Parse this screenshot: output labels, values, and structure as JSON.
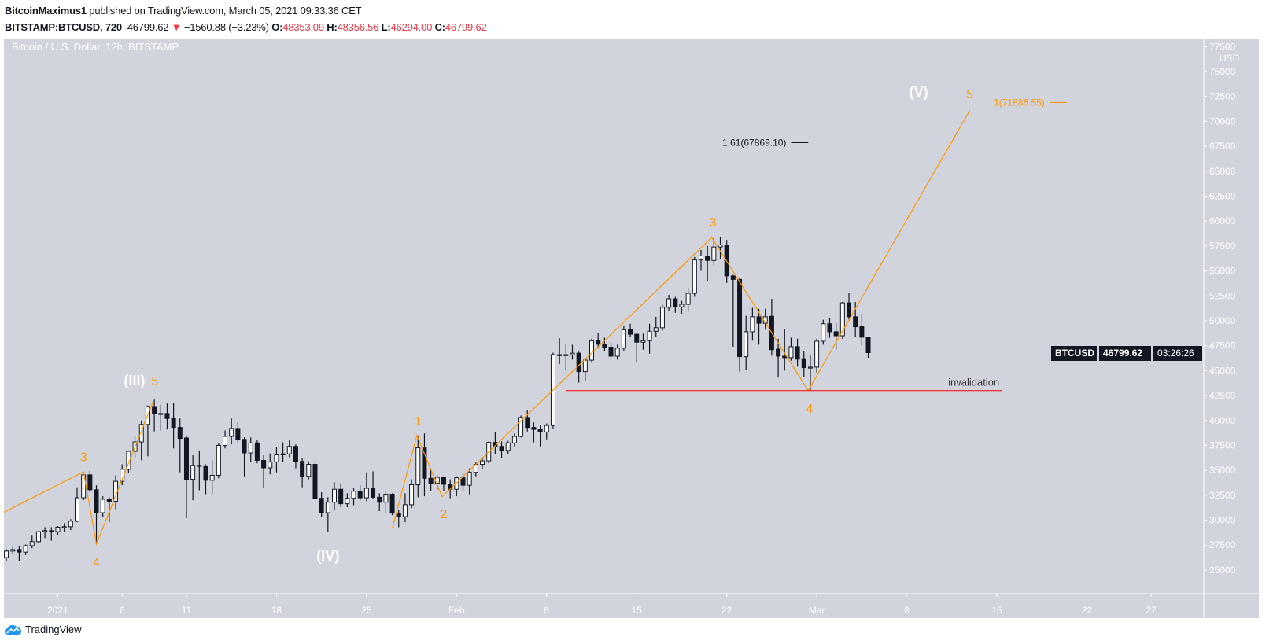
{
  "header": {
    "author": "BitcoinMaximus1",
    "published": "published on TradingView.com, March 05, 2021 09:33:36 CET",
    "symbol": "BITSTAMP:BTCUSD, 720",
    "last": "46799.62",
    "change": "−1560.88 (−3.23%)",
    "open_label": "O:",
    "open": "48353.09",
    "high_label": "H:",
    "high": "48356.56",
    "low_label": "L:",
    "low": "46294.00",
    "close_label": "C:",
    "close": "46799.62",
    "direction_icon": "triangle-down-icon"
  },
  "price_tag": {
    "symbol": "BTCUSD",
    "price": "46799.62",
    "countdown": "03:26:26"
  },
  "footer": {
    "brand": "TradingView",
    "logo_icon": "tradingview-logo-icon"
  },
  "colors": {
    "background": "#d1d4dc",
    "up_candle": "#ffffff",
    "down_candle": "#131722",
    "wave": "#ff9800",
    "degree_label": "#ffffff",
    "invalidation": "#ff0000",
    "fib_161": "#131722",
    "change_red": "#f23645"
  },
  "chart_data": {
    "type": "candlestick",
    "title": "Bitcoin / U.S. Dollar, 12h, BITSTAMP",
    "currency": "USD",
    "interval": "12h",
    "grid": false,
    "xlim": [
      "2020-12-27T19:30",
      "2021-03-31T02:00"
    ],
    "ylim": [
      22630,
      78230
    ],
    "y_ticks": [
      77500,
      75000,
      72500,
      70000,
      67500,
      65000,
      62500,
      60000,
      57500,
      55000,
      52500,
      50000,
      47500,
      45000,
      42500,
      40000,
      37500,
      35000,
      32500,
      30000,
      27500,
      25000
    ],
    "x_ticks": [
      {
        "t": "2021-01-01T00:00",
        "label": "2021"
      },
      {
        "t": "2021-01-06T00:00",
        "label": "6"
      },
      {
        "t": "2021-01-11T00:00",
        "label": "11"
      },
      {
        "t": "2021-01-18T00:00",
        "label": "18"
      },
      {
        "t": "2021-01-25T00:00",
        "label": "25"
      },
      {
        "t": "2021-02-01T00:00",
        "label": "Feb"
      },
      {
        "t": "2021-02-08T00:00",
        "label": "8"
      },
      {
        "t": "2021-02-15T00:00",
        "label": "15"
      },
      {
        "t": "2021-02-22T00:00",
        "label": "22"
      },
      {
        "t": "2021-03-01T00:00",
        "label": "Mar"
      },
      {
        "t": "2021-03-08T00:00",
        "label": "8"
      },
      {
        "t": "2021-03-15T00:00",
        "label": "15"
      },
      {
        "t": "2021-03-22T00:00",
        "label": "22"
      },
      {
        "t": "2021-03-27T00:00",
        "label": "27"
      }
    ],
    "candle_fields": [
      "open",
      "high",
      "low",
      "close"
    ],
    "candle_start": "2020-12-28T00:00",
    "candles": [
      [
        26250,
        27100,
        25950,
        26900
      ],
      [
        26900,
        27300,
        26600,
        27050
      ],
      [
        27050,
        27400,
        25900,
        26800
      ],
      [
        26800,
        27550,
        26500,
        27450
      ],
      [
        27450,
        28450,
        27200,
        27850
      ],
      [
        27850,
        28900,
        27700,
        28850
      ],
      [
        28850,
        29300,
        28200,
        28950
      ],
      [
        28950,
        29300,
        27950,
        28850
      ],
      [
        28850,
        29400,
        28550,
        29300
      ],
      [
        29300,
        29700,
        28800,
        29350
      ],
      [
        29350,
        30100,
        29000,
        29900
      ],
      [
        29900,
        33300,
        29800,
        32250
      ],
      [
        32250,
        34850,
        32000,
        34550
      ],
      [
        34550,
        34950,
        32800,
        33050
      ],
      [
        33050,
        33500,
        27600,
        30750
      ],
      [
        30750,
        32400,
        30300,
        32100
      ],
      [
        32100,
        32300,
        29800,
        31900
      ],
      [
        31900,
        34500,
        31100,
        33900
      ],
      [
        33900,
        35600,
        33500,
        35100
      ],
      [
        35100,
        37000,
        34700,
        36900
      ],
      [
        36900,
        38400,
        36300,
        37850
      ],
      [
        37850,
        40000,
        36000,
        39600
      ],
      [
        39600,
        41500,
        36400,
        41400
      ],
      [
        41400,
        42200,
        38900,
        40700
      ],
      [
        40700,
        41600,
        39000,
        40650
      ],
      [
        40700,
        41700,
        39100,
        40200
      ],
      [
        40200,
        41800,
        37200,
        39300
      ],
      [
        39300,
        40200,
        34800,
        38200
      ],
      [
        38250,
        38500,
        30200,
        34100
      ],
      [
        34100,
        36500,
        32000,
        35500
      ],
      [
        35500,
        37000,
        33000,
        35400
      ],
      [
        35400,
        35600,
        32600,
        34000
      ],
      [
        34000,
        36000,
        32600,
        34500
      ],
      [
        34500,
        37700,
        34200,
        37500
      ],
      [
        37500,
        39000,
        37200,
        38400
      ],
      [
        38400,
        40200,
        37600,
        39200
      ],
      [
        39200,
        39800,
        37800,
        38100
      ],
      [
        38100,
        38300,
        34400,
        36750
      ],
      [
        36750,
        38300,
        35800,
        37750
      ],
      [
        37750,
        38000,
        35700,
        36000
      ],
      [
        36000,
        36500,
        33200,
        35250
      ],
      [
        35250,
        36700,
        34600,
        35850
      ],
      [
        35850,
        37300,
        34800,
        36550
      ],
      [
        36550,
        37800,
        35800,
        36650
      ],
      [
        36650,
        38000,
        36300,
        37400
      ],
      [
        37400,
        37600,
        35200,
        35900
      ],
      [
        35900,
        36200,
        33300,
        34400
      ],
      [
        34400,
        35900,
        34100,
        35600
      ],
      [
        35600,
        35900,
        32100,
        32200
      ],
      [
        32200,
        32800,
        30300,
        30750
      ],
      [
        30750,
        32300,
        28850,
        31800
      ],
      [
        31800,
        33800,
        31000,
        33100
      ],
      [
        33100,
        33700,
        31300,
        31650
      ],
      [
        31650,
        32700,
        31300,
        32200
      ],
      [
        32200,
        33200,
        31500,
        32900
      ],
      [
        32900,
        33500,
        32000,
        32250
      ],
      [
        32250,
        34800,
        31900,
        33200
      ],
      [
        33200,
        34900,
        32100,
        32300
      ],
      [
        32300,
        32700,
        30900,
        31800
      ],
      [
        31800,
        32900,
        30700,
        32600
      ],
      [
        32600,
        32700,
        30500,
        30700
      ],
      [
        30700,
        31000,
        29300,
        30350
      ],
      [
        30350,
        32700,
        29800,
        31550
      ],
      [
        31550,
        34100,
        31200,
        33550
      ],
      [
        33550,
        38500,
        32300,
        37250
      ],
      [
        37250,
        38700,
        32400,
        34200
      ],
      [
        34200,
        35200,
        32900,
        33700
      ],
      [
        33700,
        34500,
        33100,
        34300
      ],
      [
        34300,
        34400,
        32900,
        33600
      ],
      [
        33600,
        34100,
        32200,
        33100
      ],
      [
        33100,
        34400,
        32400,
        34250
      ],
      [
        34250,
        34700,
        32900,
        33500
      ],
      [
        33500,
        35200,
        32600,
        34800
      ],
      [
        34800,
        35800,
        34400,
        35600
      ],
      [
        35600,
        36300,
        35100,
        35950
      ],
      [
        35950,
        37900,
        35700,
        37800
      ],
      [
        37800,
        38800,
        36600,
        37400
      ],
      [
        37400,
        37900,
        36200,
        37000
      ],
      [
        37000,
        37950,
        36600,
        37750
      ],
      [
        37750,
        38700,
        37400,
        38400
      ],
      [
        38400,
        40500,
        38300,
        40300
      ],
      [
        40300,
        41000,
        38900,
        39300
      ],
      [
        39300,
        39800,
        37800,
        39100
      ],
      [
        39100,
        39500,
        37400,
        38850
      ],
      [
        38850,
        39700,
        38100,
        39500
      ],
      [
        39500,
        46800,
        39200,
        46600
      ],
      [
        46600,
        48250,
        45650,
        46550
      ],
      [
        46550,
        47700,
        45000,
        46600
      ],
      [
        46600,
        47600,
        46100,
        46750
      ],
      [
        46750,
        46900,
        43800,
        44900
      ],
      [
        44900,
        46200,
        44000,
        46050
      ],
      [
        46050,
        48200,
        45800,
        48000
      ],
      [
        48000,
        48800,
        47200,
        47650
      ],
      [
        47650,
        48300,
        47000,
        47350
      ],
      [
        47350,
        47800,
        46300,
        46450
      ],
      [
        46450,
        47600,
        46100,
        47250
      ],
      [
        47250,
        49500,
        47000,
        49100
      ],
      [
        49100,
        49700,
        48400,
        48650
      ],
      [
        48650,
        48800,
        45800,
        47850
      ],
      [
        47850,
        48700,
        47100,
        48000
      ],
      [
        48000,
        49700,
        46700,
        48950
      ],
      [
        48950,
        50400,
        48400,
        49300
      ],
      [
        49300,
        51600,
        49000,
        51350
      ],
      [
        51350,
        52600,
        51000,
        52200
      ],
      [
        52200,
        52400,
        50800,
        51400
      ],
      [
        51400,
        52000,
        50700,
        51650
      ],
      [
        51650,
        53300,
        50900,
        52750
      ],
      [
        52750,
        56400,
        52400,
        56100
      ],
      [
        56100,
        57100,
        55000,
        56500
      ],
      [
        56500,
        57500,
        54000,
        56050
      ],
      [
        56050,
        58300,
        55600,
        57400
      ],
      [
        57400,
        58400,
        56200,
        57600
      ],
      [
        57600,
        58100,
        53800,
        54500
      ],
      [
        54500,
        54600,
        47400,
        54150
      ],
      [
        54150,
        54300,
        44900,
        46400
      ],
      [
        46400,
        50500,
        45100,
        48900
      ],
      [
        48900,
        51300,
        48000,
        50400
      ],
      [
        50400,
        51200,
        47600,
        49750
      ],
      [
        49750,
        51200,
        49100,
        50400
      ],
      [
        50450,
        52200,
        46500,
        47100
      ],
      [
        47150,
        48200,
        44300,
        46450
      ],
      [
        46450,
        49200,
        45000,
        46300
      ],
      [
        46300,
        48300,
        46000,
        47400
      ],
      [
        47400,
        48200,
        45400,
        46150
      ],
      [
        46200,
        47000,
        44400,
        45300
      ],
      [
        45300,
        46500,
        43000,
        45350
      ],
      [
        45350,
        48200,
        44800,
        47950
      ],
      [
        47950,
        50100,
        47600,
        49700
      ],
      [
        49700,
        50300,
        48300,
        48900
      ],
      [
        48900,
        49800,
        47100,
        48500
      ],
      [
        48500,
        51900,
        48200,
        51800
      ],
      [
        51800,
        52800,
        50000,
        50400
      ],
      [
        50400,
        51900,
        48400,
        49400
      ],
      [
        49400,
        50700,
        47500,
        48350
      ],
      [
        48353.09,
        48356.56,
        46294.0,
        46799.62
      ]
    ],
    "wave_paths": [
      [
        [
          "2020-12-27T19:30",
          30800
        ],
        [
          "2021-01-03T00:00",
          34850
        ],
        [
          "2021-01-04T00:00",
          27600
        ],
        [
          "2021-01-08T12:00",
          42200
        ]
      ],
      [
        [
          "2021-01-27T00:00",
          29200
        ],
        [
          "2021-01-28T22:00",
          38500
        ],
        [
          "2021-01-30T21:00",
          32350
        ],
        [
          "2021-02-20T20:00",
          58350
        ],
        [
          "2021-02-28T08:00",
          43000
        ],
        [
          "2021-03-12T21:30",
          71100
        ]
      ]
    ],
    "wave_labels": [
      {
        "text": "(III)",
        "t": "2021-01-06T23:00",
        "price": 44000,
        "degree": "primary"
      },
      {
        "text": "5",
        "t": "2021-01-08T13:00",
        "price": 44000,
        "degree": "minor"
      },
      {
        "text": "3",
        "t": "2021-01-03T00:00",
        "price": 36400,
        "degree": "minor"
      },
      {
        "text": "4",
        "t": "2021-01-04T00:00",
        "price": 25860,
        "degree": "minor"
      },
      {
        "text": "(IV)",
        "t": "2021-01-22T00:00",
        "price": 26420,
        "degree": "primary"
      },
      {
        "text": "1",
        "t": "2021-01-29T00:00",
        "price": 40000,
        "degree": "minor"
      },
      {
        "text": "2",
        "t": "2021-01-31T00:00",
        "price": 30680,
        "degree": "minor"
      },
      {
        "text": "3",
        "t": "2021-02-20T22:00",
        "price": 59930,
        "degree": "minor"
      },
      {
        "text": "4",
        "t": "2021-02-28T10:30",
        "price": 41240,
        "degree": "minor"
      },
      {
        "text": "(V)",
        "t": "2021-03-08T22:00",
        "price": 72950,
        "degree": "primary"
      },
      {
        "text": "5",
        "t": "2021-03-12T21:30",
        "price": 72790,
        "degree": "minor"
      }
    ],
    "fib_levels": [
      {
        "label": "1.61(67869.10)",
        "price": 67869.1,
        "from": "2021-02-27T00:00",
        "to": "2021-02-28T08:00",
        "color": "#131722"
      },
      {
        "label": "1(71886.55)",
        "price": 71886.55,
        "from": "2021-03-19T02:00",
        "to": "2021-03-20T10:00",
        "color": "#ff9800"
      }
    ],
    "horizontal_line": {
      "label": "invalidation",
      "price": 43000,
      "from": "2021-02-09T13:00",
      "to": "2021-03-15T09:00"
    }
  }
}
